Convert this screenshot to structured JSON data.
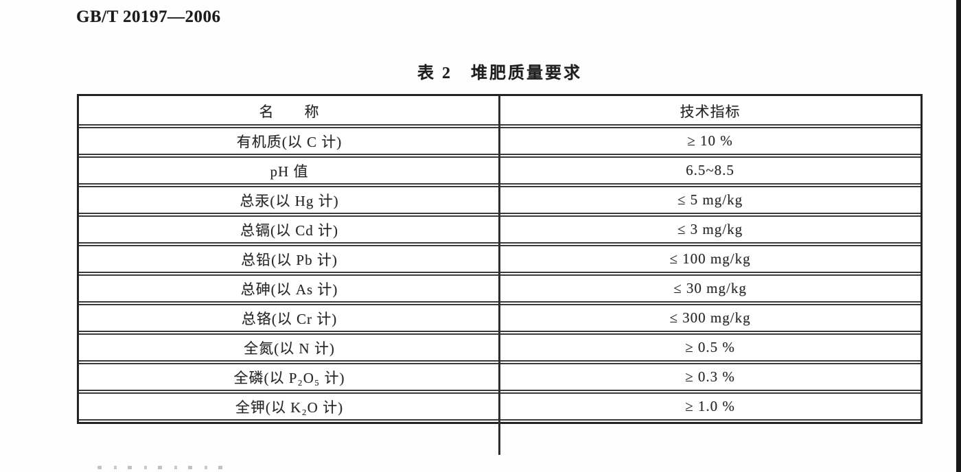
{
  "doc": {
    "code": "GB/T 20197—2006",
    "table_title": "表 2　堆肥质量要求"
  },
  "table": {
    "columns": [
      "名　　称",
      "技术指标"
    ],
    "rows": [
      {
        "name": "有机质(以 C 计)",
        "value": "≥ 10 %"
      },
      {
        "name": "pH 值",
        "value": "6.5~8.5"
      },
      {
        "name": "总汞(以 Hg 计)",
        "value": "≤ 5 mg/kg"
      },
      {
        "name": "总镉(以 Cd 计)",
        "value": "≤ 3 mg/kg"
      },
      {
        "name": "总铅(以 Pb 计)",
        "value": "≤ 100 mg/kg"
      },
      {
        "name": "总砷(以 As 计)",
        "value": "≤ 30 mg/kg"
      },
      {
        "name": "总铬(以 Cr 计)",
        "value": "≤ 300 mg/kg"
      },
      {
        "name": "全氮(以 N 计)",
        "value": "≥ 0.5 %"
      },
      {
        "name": "全磷(以 P₂O₅ 计)",
        "value": "≥ 0.3 %"
      },
      {
        "name": "全钾(以 K₂O 计)",
        "value": "≥ 1.0 %"
      }
    ],
    "colors": {
      "text": "#262626",
      "border": "#2e2e2e",
      "background": "#ffffff"
    }
  }
}
